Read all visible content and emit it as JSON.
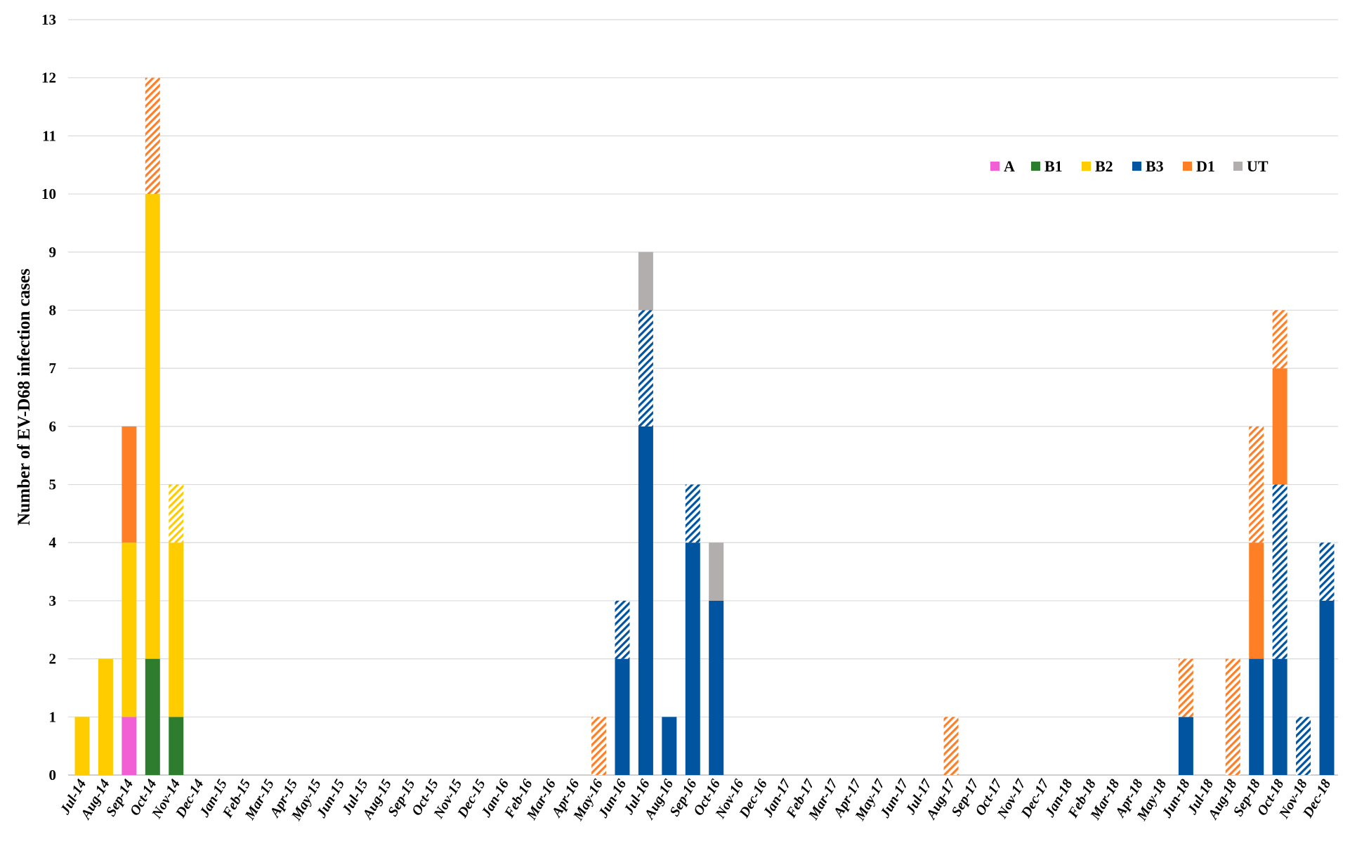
{
  "chart_data": {
    "type": "bar",
    "stacked": true,
    "ylabel": "Number of EV-D68 infection cases",
    "xlabel": "",
    "ylim": [
      0,
      13
    ],
    "y_ticks": [
      "0",
      "1",
      "2",
      "3",
      "4",
      "5",
      "6",
      "7",
      "8",
      "9",
      "10",
      "11",
      "12",
      "13"
    ],
    "grid": "horizontal",
    "legend_position": "top-right",
    "categories": [
      "Jul-14",
      "Aug-14",
      "Sep-14",
      "Oct-14",
      "Nov-14",
      "Dec-14",
      "Jan-15",
      "Feb-15",
      "Mar-15",
      "Apr-15",
      "May-15",
      "Jun-15",
      "Jul-15",
      "Aug-15",
      "Sep-15",
      "Oct-15",
      "Nov-15",
      "Dec-15",
      "Jan-16",
      "Feb-16",
      "Mar-16",
      "Apr-16",
      "May-16",
      "Jun-16",
      "Jul-16",
      "Aug-16",
      "Sep-16",
      "Oct-16",
      "Nov-16",
      "Dec-16",
      "Jan-17",
      "Feb-17",
      "Mar-17",
      "Apr-17",
      "May-17",
      "Jun-17",
      "Jul-17",
      "Aug-17",
      "Sep-17",
      "Oct-17",
      "Nov-17",
      "Dec-17",
      "Jan-18",
      "Feb-18",
      "Mar-18",
      "Apr-18",
      "May-18",
      "Jun-18",
      "Jul-18",
      "Aug-18",
      "Sep-18",
      "Oct-18",
      "Nov-18",
      "Dec-18"
    ],
    "legend": [
      {
        "name": "A",
        "color": "#f25fd5"
      },
      {
        "name": "B1",
        "color": "#2e7d2e"
      },
      {
        "name": "B2",
        "color": "#ffcc00"
      },
      {
        "name": "B3",
        "color": "#0054a0"
      },
      {
        "name": "D1",
        "color": "#ff7f27"
      },
      {
        "name": "UT",
        "color": "#b3aeae"
      }
    ],
    "series": [
      {
        "name": "A",
        "hatched": false,
        "color": "#f25fd5",
        "values": [
          0,
          0,
          1,
          0,
          0,
          0,
          0,
          0,
          0,
          0,
          0,
          0,
          0,
          0,
          0,
          0,
          0,
          0,
          0,
          0,
          0,
          0,
          0,
          0,
          0,
          0,
          0,
          0,
          0,
          0,
          0,
          0,
          0,
          0,
          0,
          0,
          0,
          0,
          0,
          0,
          0,
          0,
          0,
          0,
          0,
          0,
          0,
          0,
          0,
          0,
          0,
          0,
          0,
          0
        ]
      },
      {
        "name": "B1",
        "hatched": false,
        "color": "#2e7d2e",
        "values": [
          0,
          0,
          0,
          2,
          1,
          0,
          0,
          0,
          0,
          0,
          0,
          0,
          0,
          0,
          0,
          0,
          0,
          0,
          0,
          0,
          0,
          0,
          0,
          0,
          0,
          0,
          0,
          0,
          0,
          0,
          0,
          0,
          0,
          0,
          0,
          0,
          0,
          0,
          0,
          0,
          0,
          0,
          0,
          0,
          0,
          0,
          0,
          0,
          0,
          0,
          0,
          0,
          0,
          0
        ]
      },
      {
        "name": "B2",
        "hatched": false,
        "color": "#ffcc00",
        "values": [
          1,
          2,
          3,
          8,
          3,
          0,
          0,
          0,
          0,
          0,
          0,
          0,
          0,
          0,
          0,
          0,
          0,
          0,
          0,
          0,
          0,
          0,
          0,
          0,
          0,
          0,
          0,
          0,
          0,
          0,
          0,
          0,
          0,
          0,
          0,
          0,
          0,
          0,
          0,
          0,
          0,
          0,
          0,
          0,
          0,
          0,
          0,
          0,
          0,
          0,
          0,
          0,
          0,
          0
        ]
      },
      {
        "name": "B3",
        "hatched": false,
        "color": "#0054a0",
        "values": [
          0,
          0,
          0,
          0,
          0,
          0,
          0,
          0,
          0,
          0,
          0,
          0,
          0,
          0,
          0,
          0,
          0,
          0,
          0,
          0,
          0,
          0,
          0,
          2,
          6,
          1,
          4,
          3,
          0,
          0,
          0,
          0,
          0,
          0,
          0,
          0,
          0,
          0,
          0,
          0,
          0,
          0,
          0,
          0,
          0,
          0,
          0,
          1,
          0,
          0,
          2,
          2,
          0,
          3
        ]
      },
      {
        "name": "B3",
        "hatched": true,
        "color": "#0054a0",
        "values": [
          0,
          0,
          0,
          0,
          0,
          0,
          0,
          0,
          0,
          0,
          0,
          0,
          0,
          0,
          0,
          0,
          0,
          0,
          0,
          0,
          0,
          0,
          0,
          1,
          2,
          0,
          1,
          0,
          0,
          0,
          0,
          0,
          0,
          0,
          0,
          0,
          0,
          0,
          0,
          0,
          0,
          0,
          0,
          0,
          0,
          0,
          0,
          0,
          0,
          0,
          0,
          3,
          1,
          1
        ]
      },
      {
        "name": "D1",
        "hatched": false,
        "color": "#ff7f27",
        "values": [
          0,
          0,
          2,
          0,
          0,
          0,
          0,
          0,
          0,
          0,
          0,
          0,
          0,
          0,
          0,
          0,
          0,
          0,
          0,
          0,
          0,
          0,
          0,
          0,
          0,
          0,
          0,
          0,
          0,
          0,
          0,
          0,
          0,
          0,
          0,
          0,
          0,
          0,
          0,
          0,
          0,
          0,
          0,
          0,
          0,
          0,
          0,
          0,
          0,
          0,
          2,
          2,
          0,
          0
        ]
      },
      {
        "name": "D1",
        "hatched": true,
        "color": "#ff7f27",
        "values": [
          0,
          0,
          0,
          2,
          0,
          0,
          0,
          0,
          0,
          0,
          0,
          0,
          0,
          0,
          0,
          0,
          0,
          0,
          0,
          0,
          0,
          0,
          1,
          0,
          0,
          0,
          0,
          0,
          0,
          0,
          0,
          0,
          0,
          0,
          0,
          0,
          0,
          1,
          0,
          0,
          0,
          0,
          0,
          0,
          0,
          0,
          0,
          1,
          0,
          2,
          2,
          1,
          0,
          0
        ]
      },
      {
        "name": "B2",
        "hatched": true,
        "color": "#ffcc00",
        "values": [
          0,
          0,
          0,
          0,
          1,
          0,
          0,
          0,
          0,
          0,
          0,
          0,
          0,
          0,
          0,
          0,
          0,
          0,
          0,
          0,
          0,
          0,
          0,
          0,
          0,
          0,
          0,
          0,
          0,
          0,
          0,
          0,
          0,
          0,
          0,
          0,
          0,
          0,
          0,
          0,
          0,
          0,
          0,
          0,
          0,
          0,
          0,
          0,
          0,
          0,
          0,
          0,
          0,
          0
        ]
      },
      {
        "name": "UT",
        "hatched": false,
        "color": "#b3aeae",
        "values": [
          0,
          0,
          0,
          0,
          0,
          0,
          0,
          0,
          0,
          0,
          0,
          0,
          0,
          0,
          0,
          0,
          0,
          0,
          0,
          0,
          0,
          0,
          0,
          0,
          1,
          0,
          0,
          1,
          0,
          0,
          0,
          0,
          0,
          0,
          0,
          0,
          0,
          0,
          0,
          0,
          0,
          0,
          0,
          0,
          0,
          0,
          0,
          0,
          0,
          0,
          0,
          0,
          0,
          0
        ]
      }
    ]
  }
}
